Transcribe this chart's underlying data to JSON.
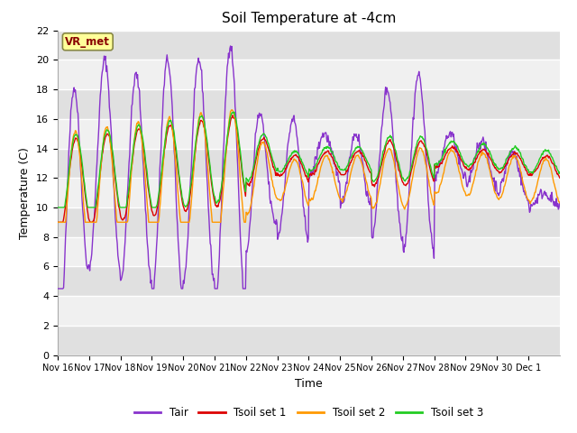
{
  "title": "Soil Temperature at -4cm",
  "xlabel": "Time",
  "ylabel": "Temperature (C)",
  "ylim": [
    0,
    22
  ],
  "yticks": [
    0,
    2,
    4,
    6,
    8,
    10,
    12,
    14,
    16,
    18,
    20,
    22
  ],
  "xtick_labels": [
    "Nov 16",
    "Nov 17",
    "Nov 18",
    "Nov 19",
    "Nov 20",
    "Nov 21",
    "Nov 22",
    "Nov 23",
    "Nov 24",
    "Nov 25",
    "Nov 26",
    "Nov 27",
    "Nov 28",
    "Nov 29",
    "Nov 30",
    "Dec 1"
  ],
  "annotation_text": "VR_met",
  "legend_entries": [
    "Tair",
    "Tsoil set 1",
    "Tsoil set 2",
    "Tsoil set 3"
  ],
  "colors": {
    "Tair": "#8833cc",
    "Tsoil_set1": "#dd0000",
    "Tsoil_set2": "#ff9900",
    "Tsoil_set3": "#22cc22"
  },
  "fig_bg_color": "#ffffff",
  "plot_bg_light": "#f0f0f0",
  "plot_bg_dark": "#e0e0e0",
  "title_fontsize": 11,
  "axis_label_fontsize": 9,
  "tick_fontsize": 8
}
